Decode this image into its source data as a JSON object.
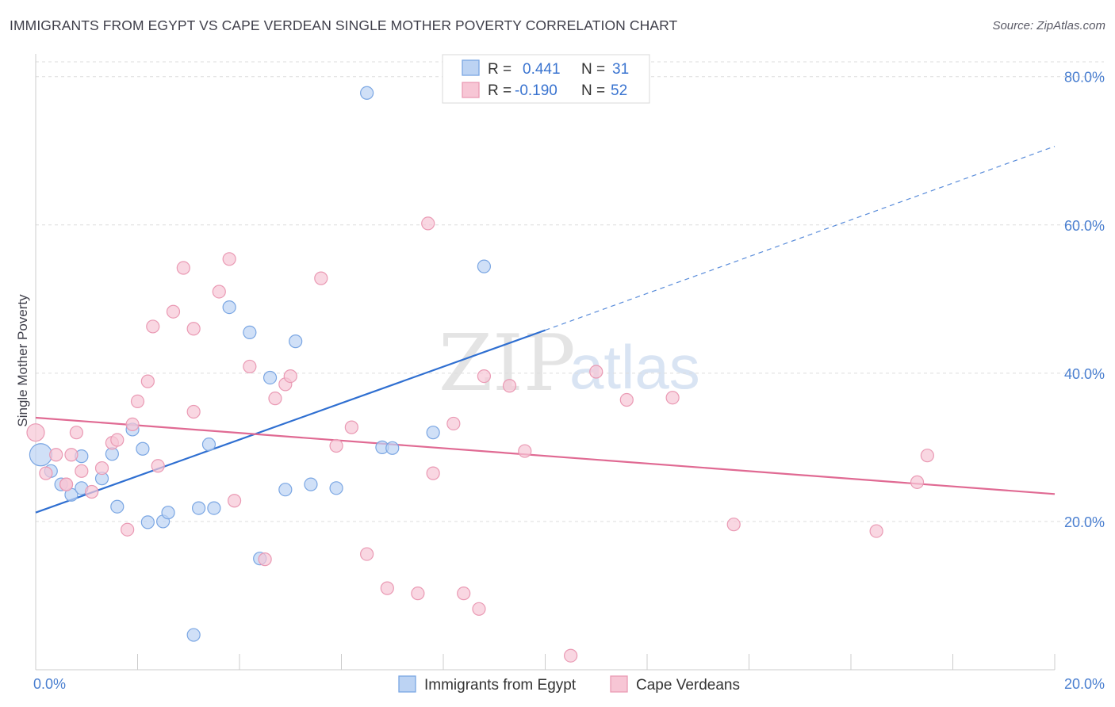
{
  "title": "IMMIGRANTS FROM EGYPT VS CAPE VERDEAN SINGLE MOTHER POVERTY CORRELATION CHART",
  "source": "Source: ZipAtlas.com",
  "watermark": {
    "zip": "ZIP",
    "atlas": "atlas"
  },
  "colors": {
    "blue_fill": "#bcd3f3",
    "blue_stroke": "#7aa6e3",
    "blue_line": "#2f6fd1",
    "pink_fill": "#f7c6d5",
    "pink_stroke": "#ea9ab4",
    "pink_line": "#e06a93",
    "tick_text": "#4a7fd0",
    "grid": "#dddddd"
  },
  "stats_legend": [
    {
      "r_label": "R =",
      "r_value": "0.441",
      "n_label": "N =",
      "n_value": "31"
    },
    {
      "r_label": "R =",
      "r_value": "-0.190",
      "n_label": "N =",
      "n_value": "52"
    }
  ],
  "chart_data": {
    "type": "scatter",
    "title": "IMMIGRANTS FROM EGYPT VS CAPE VERDEAN SINGLE MOTHER POVERTY CORRELATION CHART",
    "xlabel": "",
    "ylabel": "Single Mother Poverty",
    "xlim": [
      0,
      20
    ],
    "ylim": [
      0,
      82
    ],
    "x_tick_labels": [
      "0.0%",
      "20.0%"
    ],
    "y_ticks": [
      20,
      40,
      60,
      80
    ],
    "y_tick_labels": [
      "20.0%",
      "40.0%",
      "60.0%",
      "80.0%"
    ],
    "grid": true,
    "legend_position": "bottom",
    "series": [
      {
        "name": "Immigrants from Egypt",
        "points": [
          [
            0.1,
            29.0
          ],
          [
            0.3,
            26.8
          ],
          [
            0.5,
            25.0
          ],
          [
            0.7,
            23.6
          ],
          [
            0.9,
            28.8
          ],
          [
            0.9,
            24.5
          ],
          [
            1.3,
            25.8
          ],
          [
            1.5,
            29.1
          ],
          [
            1.6,
            22.0
          ],
          [
            1.9,
            32.4
          ],
          [
            2.1,
            29.8
          ],
          [
            2.2,
            19.9
          ],
          [
            2.5,
            20.0
          ],
          [
            2.6,
            21.2
          ],
          [
            3.1,
            4.7
          ],
          [
            3.2,
            21.8
          ],
          [
            3.4,
            30.4
          ],
          [
            3.5,
            21.8
          ],
          [
            3.8,
            48.9
          ],
          [
            4.2,
            45.5
          ],
          [
            4.4,
            15.0
          ],
          [
            4.6,
            39.4
          ],
          [
            4.9,
            24.3
          ],
          [
            5.1,
            44.3
          ],
          [
            5.4,
            25.0
          ],
          [
            5.9,
            24.5
          ],
          [
            6.5,
            77.8
          ],
          [
            6.8,
            30.0
          ],
          [
            7.0,
            29.9
          ],
          [
            7.8,
            32.0
          ],
          [
            8.8,
            54.4
          ]
        ],
        "trend": {
          "x": [
            0,
            10
          ],
          "y": [
            21.2,
            45.8
          ]
        },
        "trend_extension": {
          "x": [
            10,
            20
          ],
          "y": [
            45.8,
            70.6
          ]
        }
      },
      {
        "name": "Cape Verdeans",
        "points": [
          [
            0.0,
            32.0
          ],
          [
            0.2,
            26.5
          ],
          [
            0.4,
            29.0
          ],
          [
            0.6,
            25.0
          ],
          [
            0.7,
            29.0
          ],
          [
            0.8,
            32.0
          ],
          [
            0.9,
            26.8
          ],
          [
            1.1,
            24.0
          ],
          [
            1.3,
            27.2
          ],
          [
            1.5,
            30.6
          ],
          [
            1.6,
            31.0
          ],
          [
            1.8,
            18.9
          ],
          [
            1.9,
            33.1
          ],
          [
            2.0,
            36.2
          ],
          [
            2.2,
            38.9
          ],
          [
            2.3,
            46.3
          ],
          [
            2.4,
            27.5
          ],
          [
            2.7,
            48.3
          ],
          [
            2.9,
            54.2
          ],
          [
            3.1,
            34.8
          ],
          [
            3.1,
            46.0
          ],
          [
            3.6,
            51.0
          ],
          [
            3.8,
            55.4
          ],
          [
            3.9,
            22.8
          ],
          [
            4.2,
            40.9
          ],
          [
            4.5,
            14.9
          ],
          [
            4.7,
            36.6
          ],
          [
            4.9,
            38.5
          ],
          [
            5.0,
            39.6
          ],
          [
            5.6,
            52.8
          ],
          [
            5.9,
            30.2
          ],
          [
            6.2,
            32.7
          ],
          [
            6.5,
            15.6
          ],
          [
            6.9,
            11.0
          ],
          [
            7.5,
            10.3
          ],
          [
            7.7,
            60.2
          ],
          [
            7.8,
            26.5
          ],
          [
            8.2,
            33.2
          ],
          [
            8.4,
            10.3
          ],
          [
            8.7,
            8.2
          ],
          [
            8.8,
            39.6
          ],
          [
            9.3,
            38.3
          ],
          [
            9.6,
            29.5
          ],
          [
            10.5,
            1.9
          ],
          [
            11.0,
            40.2
          ],
          [
            11.6,
            36.4
          ],
          [
            12.5,
            36.7
          ],
          [
            13.7,
            19.6
          ],
          [
            16.5,
            18.7
          ],
          [
            17.3,
            25.3
          ],
          [
            17.5,
            28.9
          ],
          [
            0.6,
            25.0
          ]
        ],
        "trend": {
          "x": [
            0,
            20
          ],
          "y": [
            34.0,
            23.7
          ]
        }
      }
    ]
  }
}
